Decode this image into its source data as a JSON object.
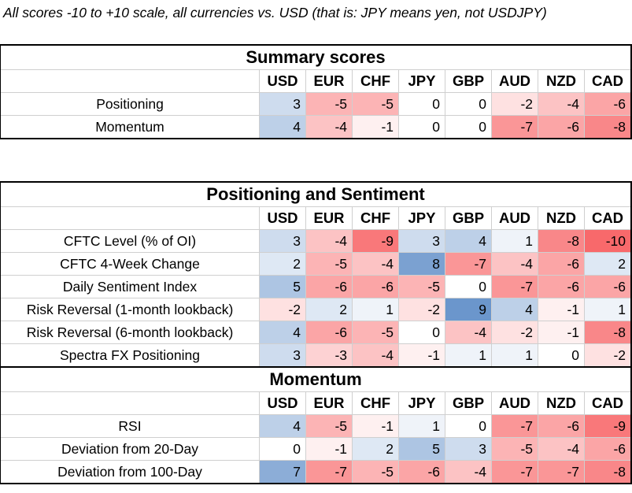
{
  "caption": "All scores -10 to +10 scale, all currencies vs. USD (that is: JPY means yen, not USDJPY)",
  "currencies": [
    "USD",
    "EUR",
    "CHF",
    "JPY",
    "GBP",
    "AUD",
    "NZD",
    "CAD"
  ],
  "color_scale": {
    "negative_max": "#f8696b",
    "positive_max": "#5a8ac6",
    "neutral": "#ffffff"
  },
  "summary": {
    "title": "Summary scores",
    "rows": [
      {
        "label": "Positioning",
        "values": [
          3,
          -5,
          -5,
          0,
          0,
          -2,
          -4,
          -6
        ]
      },
      {
        "label": "Momentum",
        "values": [
          4,
          -4,
          -1,
          0,
          0,
          -7,
          -6,
          -8
        ]
      }
    ]
  },
  "positioning": {
    "title": "Positioning and Sentiment",
    "rows": [
      {
        "label": "CFTC Level (% of OI)",
        "values": [
          3,
          -4,
          -9,
          3,
          4,
          1,
          -8,
          -10
        ]
      },
      {
        "label": "CFTC 4-Week Change",
        "values": [
          2,
          -5,
          -4,
          8,
          -7,
          -4,
          -6,
          2
        ]
      },
      {
        "label": "Daily Sentiment Index",
        "values": [
          5,
          -6,
          -6,
          -5,
          0,
          -7,
          -6,
          -6
        ]
      },
      {
        "label": "Risk Reversal (1-month lookback)",
        "values": [
          -2,
          2,
          1,
          -2,
          9,
          4,
          -1,
          1
        ]
      },
      {
        "label": "Risk Reversal (6-month lookback)",
        "values": [
          4,
          -6,
          -5,
          0,
          -4,
          -2,
          -1,
          -8
        ]
      },
      {
        "label": "Spectra FX Positioning",
        "values": [
          3,
          -3,
          -4,
          -1,
          1,
          1,
          0,
          -2
        ]
      }
    ]
  },
  "momentum": {
    "title": "Momentum",
    "rows": [
      {
        "label": "RSI",
        "values": [
          4,
          -5,
          -1,
          1,
          0,
          -7,
          -6,
          -9
        ]
      },
      {
        "label": "Deviation from 20-Day",
        "values": [
          0,
          -1,
          2,
          5,
          3,
          -5,
          -4,
          -6
        ]
      },
      {
        "label": "Deviation from 100-Day",
        "values": [
          7,
          -7,
          -5,
          -6,
          -4,
          -7,
          -7,
          -8
        ]
      }
    ]
  }
}
